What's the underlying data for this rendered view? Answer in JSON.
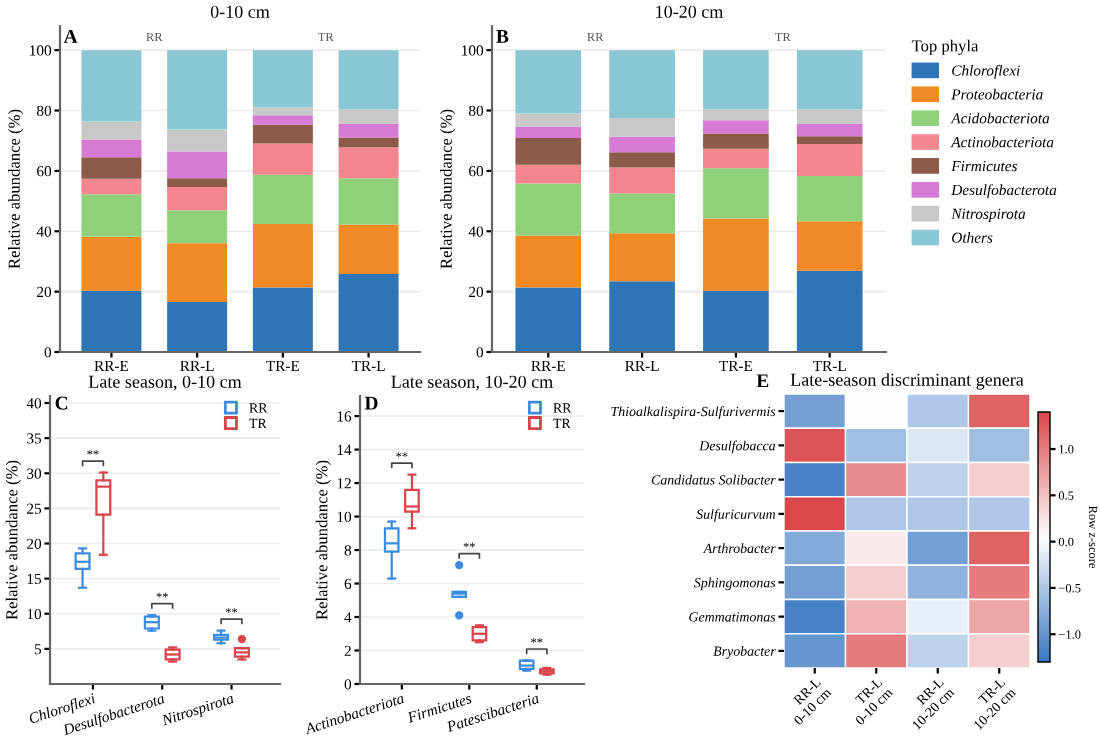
{
  "chart_data": [
    {
      "type": "bar",
      "stacked": true,
      "title": "0-10 cm",
      "ylabel": "Relative abundance (%)",
      "categories": [
        "RR-E",
        "RR-L",
        "TR-E",
        "TR-L"
      ],
      "ylim": [
        0,
        108
      ],
      "yticks": [
        0,
        20,
        40,
        60,
        80,
        100
      ],
      "grid": "y",
      "annotations": [
        "A",
        "RR",
        "TR"
      ],
      "series": [
        {
          "color": "#2e75b6",
          "values": [
            20.3,
            16.6,
            21.4,
            25.8
          ]
        },
        {
          "color": "#f08a24",
          "values": [
            17.9,
            19.4,
            21.0,
            16.4
          ]
        },
        {
          "color": "#8fd17a",
          "values": [
            14.1,
            11.0,
            16.3,
            15.4
          ]
        },
        {
          "color": "#f4868d",
          "values": [
            5.1,
            7.7,
            10.4,
            10.2
          ]
        },
        {
          "color": "#8b5a48",
          "values": [
            7.1,
            2.9,
            6.2,
            3.3
          ]
        },
        {
          "color": "#d77ad3",
          "values": [
            5.9,
            8.8,
            3.1,
            4.4
          ]
        },
        {
          "color": "#c8c8c8",
          "values": [
            6.0,
            7.3,
            2.6,
            4.9
          ]
        },
        {
          "color": "#8ac6d4",
          "values": [
            23.6,
            26.3,
            19.0,
            19.6
          ]
        }
      ]
    },
    {
      "type": "bar",
      "stacked": true,
      "title": "10-20 cm",
      "ylabel": "Relative abundance (%)",
      "categories": [
        "RR-E",
        "RR-L",
        "TR-E",
        "TR-L"
      ],
      "ylim": [
        0,
        108
      ],
      "yticks": [
        0,
        20,
        40,
        60,
        80,
        100
      ],
      "grid": "y",
      "legend": "right",
      "legend_title": "Top phyla",
      "annotations": [
        "B",
        "RR",
        "TR"
      ],
      "series": [
        {
          "name": "Chloroflexi",
          "color": "#2e75b6",
          "values": [
            21.4,
            23.4,
            20.3,
            26.9
          ]
        },
        {
          "name": "Proteobacteria",
          "color": "#f08a24",
          "values": [
            17.2,
            15.9,
            23.9,
            16.4
          ]
        },
        {
          "name": "Acidobacteriota",
          "color": "#8fd17a",
          "values": [
            17.2,
            13.2,
            16.7,
            15.0
          ]
        },
        {
          "name": "Actinobacteriota",
          "color": "#f4868d",
          "values": [
            6.2,
            8.6,
            6.4,
            10.6
          ]
        },
        {
          "name": "Firmicutes",
          "color": "#8b5a48",
          "values": [
            8.9,
            5.1,
            5.1,
            2.6
          ]
        },
        {
          "name": "Desulfobacterota",
          "color": "#d77ad3",
          "values": [
            3.7,
            5.1,
            4.4,
            4.0
          ]
        },
        {
          "name": "Nitrospirota",
          "color": "#c8c8c8",
          "values": [
            4.4,
            6.2,
            3.6,
            4.9
          ]
        },
        {
          "name": "Others",
          "color": "#8ac6d4",
          "values": [
            21.0,
            22.5,
            19.6,
            19.6
          ]
        }
      ]
    },
    {
      "type": "box",
      "title": "Late season, 0-10 cm",
      "ylabel": "Relative abundance (%)",
      "categories": [
        "Chloroflexi",
        "Desulfobacterota",
        "Nitrospirota"
      ],
      "ylim": [
        0,
        41
      ],
      "yticks": [
        5,
        10,
        15,
        20,
        25,
        30,
        35,
        40
      ],
      "grid": "y",
      "legend": "top right",
      "annotations": [
        "C",
        "**",
        "**",
        "**"
      ],
      "series": [
        {
          "name": "RR",
          "color": "#3d8be0",
          "boxes": [
            {
              "low": 13.7,
              "q1": 16.4,
              "median": 17.4,
              "q3": 18.6,
              "high": 19.3
            },
            {
              "low": 7.6,
              "q1": 7.9,
              "median": 8.8,
              "q3": 9.6,
              "high": 9.8
            },
            {
              "low": 5.8,
              "q1": 6.3,
              "median": 6.6,
              "q3": 7.0,
              "high": 7.6
            }
          ]
        },
        {
          "name": "TR",
          "color": "#d9434a",
          "boxes": [
            {
              "low": 18.4,
              "q1": 24.1,
              "median": 28.1,
              "q3": 29.0,
              "high": 30.1
            },
            {
              "low": 3.2,
              "q1": 3.5,
              "median": 4.2,
              "q3": 4.9,
              "high": 5.2
            },
            {
              "low": 3.5,
              "q1": 3.9,
              "median": 4.5,
              "q3": 5.1,
              "high": 5.1,
              "outliers": [
                6.4
              ]
            }
          ]
        }
      ]
    },
    {
      "type": "box",
      "title": "Late season, 10-20 cm",
      "ylabel": "Relative abundance (%)",
      "categories": [
        "Actinobacteriota",
        "Firmicutes",
        "Patescibacteria"
      ],
      "ylim": [
        0,
        17.2
      ],
      "yticks": [
        0,
        2,
        4,
        6,
        8,
        10,
        12,
        14,
        16
      ],
      "grid": "y",
      "legend": "top right",
      "annotations": [
        "D",
        "**",
        "**",
        "**"
      ],
      "series": [
        {
          "name": "RR",
          "color": "#3d8be0",
          "boxes": [
            {
              "low": 6.3,
              "q1": 7.9,
              "median": 8.4,
              "q3": 9.3,
              "high": 9.7
            },
            {
              "low": 5.2,
              "q1": 5.2,
              "median": 5.4,
              "q3": 5.5,
              "high": 5.5,
              "outliers": [
                7.1,
                4.1
              ]
            },
            {
              "low": 0.8,
              "q1": 0.9,
              "median": 1.1,
              "q3": 1.4,
              "high": 1.4
            }
          ]
        },
        {
          "name": "TR",
          "color": "#d9434a",
          "boxes": [
            {
              "low": 9.3,
              "q1": 10.3,
              "median": 10.6,
              "q3": 11.6,
              "high": 12.5
            },
            {
              "low": 2.5,
              "q1": 2.6,
              "median": 3.0,
              "q3": 3.4,
              "high": 3.5
            },
            {
              "low": 0.56,
              "q1": 0.64,
              "median": 0.76,
              "q3": 0.88,
              "high": 0.96
            }
          ]
        }
      ]
    },
    {
      "type": "heatmap",
      "title": "Late-season discriminant genera",
      "clabel": "Row z-score",
      "annotations": [
        "E"
      ],
      "categories": [
        "RR-L\n0-10 cm",
        "TR-L\n0-10 cm",
        "RR-L\n10-20 cm",
        "TR-L\n10-20 cm"
      ],
      "y_categories": [
        "Thioalkalispira-Sulfurivermis",
        "Desulfobacca",
        "Candidatus Solibacter",
        "Sulfuricurvum",
        "Arthrobacter",
        "Sphingomonas",
        "Gemmatimonas",
        "Bryobacter"
      ],
      "cells": [
        [
          -0.9,
          0.05,
          -0.5,
          1.2
        ],
        [
          1.3,
          -0.6,
          -0.2,
          -0.6
        ],
        [
          -1.2,
          0.9,
          -0.4,
          0.4
        ],
        [
          1.4,
          -0.5,
          -0.5,
          -0.5
        ],
        [
          -0.8,
          0.2,
          -0.9,
          1.2
        ],
        [
          -0.9,
          0.4,
          -0.7,
          1.0
        ],
        [
          -1.2,
          0.6,
          -0.1,
          0.7
        ],
        [
          -1.0,
          1.0,
          -0.4,
          0.4
        ]
      ],
      "clim": [
        -1.3,
        1.4
      ],
      "cticks": [
        {
          "value": -1.0,
          "label": "−1.0"
        },
        {
          "value": -0.5,
          "label": "−0.5"
        },
        {
          "value": 0.0,
          "label": "0.0"
        },
        {
          "value": 0.5,
          "label": "0.5"
        },
        {
          "value": 1.0,
          "label": "1.0"
        }
      ]
    }
  ]
}
